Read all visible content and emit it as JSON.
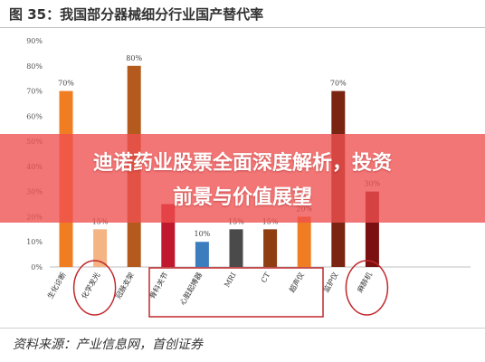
{
  "header": {
    "title": "图 35：我国部分器械细分行业国产替代率"
  },
  "banner": {
    "line1": "迪诺药业股票全面深度解析，投资",
    "line2": "前景与价值展望"
  },
  "footer": {
    "source": "资料来源：产业信息网，首创证券"
  },
  "chart_data": {
    "type": "bar",
    "categories": [
      "生化诊断",
      "化学发光",
      "冠脉支架",
      "骨科关节",
      "心脏起搏器",
      "MRI",
      "CT",
      "超声仪",
      "监护仪",
      "麻醉机"
    ],
    "values": [
      70,
      15,
      80,
      25,
      10,
      15,
      15,
      20,
      70,
      30
    ],
    "value_labels": [
      "70%",
      "15%",
      "80%",
      "",
      "10%",
      "15%",
      "15%",
      "20%",
      "70%",
      "30%"
    ],
    "colors": [
      "#f07d22",
      "#f5b483",
      "#b45a1c",
      "#c0182c",
      "#3c7ebd",
      "#4a4a4a",
      "#8f3e12",
      "#f07d22",
      "#7a2412",
      "#7a1010"
    ],
    "y_ticks": [
      "0%",
      "10%",
      "20%",
      "30%",
      "40%",
      "50%",
      "60%",
      "70%",
      "80%",
      "90%"
    ],
    "ylim": [
      0,
      90
    ],
    "grid": false,
    "circled_categories": [
      "化学发光",
      "麻醉机"
    ],
    "boxed_categories": [
      "骨科关节",
      "心脏起搏器",
      "MRI",
      "CT",
      "超声仪"
    ]
  }
}
